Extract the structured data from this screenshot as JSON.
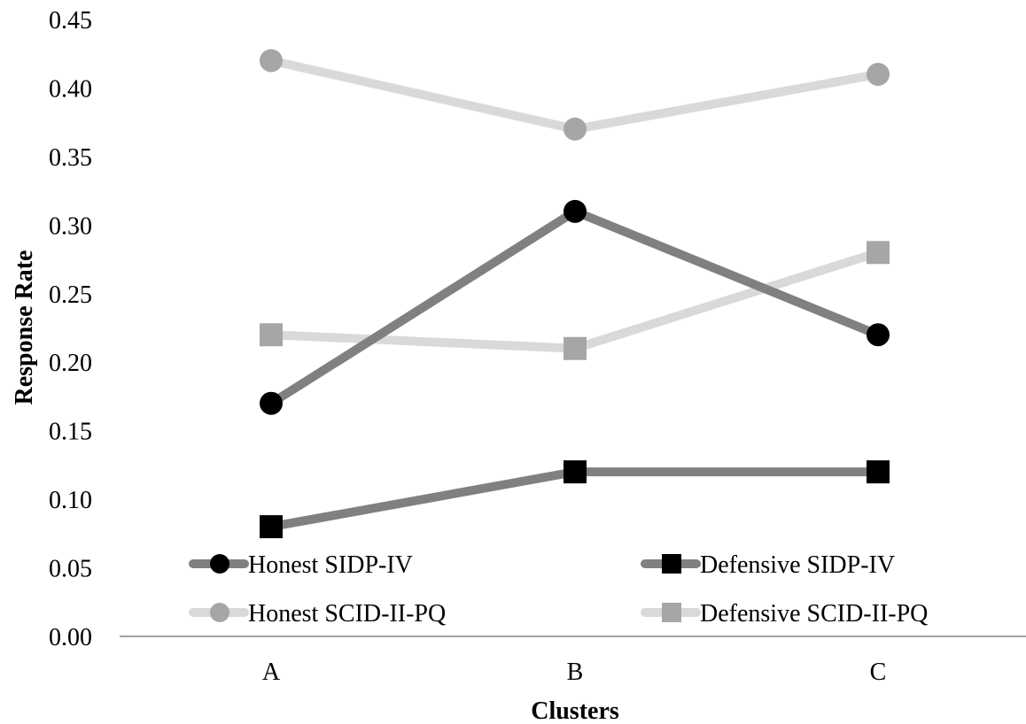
{
  "chart_data": {
    "type": "line",
    "title": "",
    "xlabel": "Clusters",
    "ylabel": "Response Rate",
    "categories": [
      "A",
      "B",
      "C"
    ],
    "ylim": [
      0,
      0.45
    ],
    "yticks": [
      "0.00",
      "0.05",
      "0.10",
      "0.15",
      "0.20",
      "0.25",
      "0.30",
      "0.35",
      "0.40",
      "0.45"
    ],
    "grid": false,
    "legend_position": "bottom",
    "series": [
      {
        "name": "Honest SIDP-IV",
        "values": [
          0.17,
          0.31,
          0.22
        ],
        "line_color": "#808080",
        "marker": "circle",
        "marker_color": "#000000"
      },
      {
        "name": "Defensive SIDP-IV",
        "values": [
          0.08,
          0.12,
          0.12
        ],
        "line_color": "#808080",
        "marker": "square",
        "marker_color": "#000000"
      },
      {
        "name": "Honest SCID-II-PQ",
        "values": [
          0.42,
          0.37,
          0.41
        ],
        "line_color": "#d9d9d9",
        "marker": "circle",
        "marker_color": "#a6a6a6"
      },
      {
        "name": "Defensive SCID-II-PQ",
        "values": [
          0.22,
          0.21,
          0.28
        ],
        "line_color": "#d9d9d9",
        "marker": "square",
        "marker_color": "#a6a6a6"
      }
    ]
  }
}
